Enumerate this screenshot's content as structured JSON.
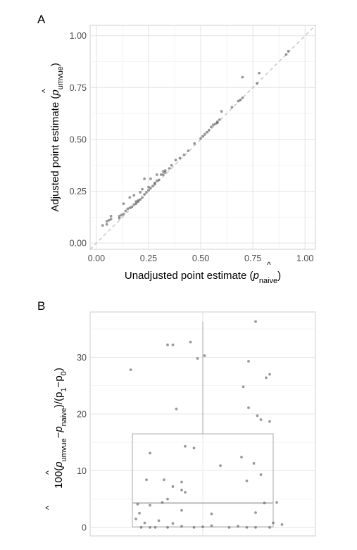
{
  "chart_data": [
    {
      "panel_label": "A",
      "type": "scatter",
      "xlabel": "Unadjusted point estimate (p̂naive)",
      "ylabel": "Adjusted point estimate (p̂umvue)",
      "xlabel_parts": {
        "pre": "Unadjusted point estimate (",
        "hat": "p",
        "sub": "naive",
        "post": ")"
      },
      "ylabel_parts": {
        "pre": "Adjusted point estimate (",
        "hat": "p",
        "sub": "umvue",
        "post": ")"
      },
      "xlim": [
        -0.03,
        1.05
      ],
      "ylim": [
        -0.03,
        1.05
      ],
      "x_ticks": [
        "0.00",
        "0.25",
        "0.50",
        "0.75",
        "1.00"
      ],
      "y_ticks": [
        "0.00",
        "0.25",
        "0.50",
        "0.75",
        "1.00"
      ],
      "x_tick_values": [
        0,
        0.25,
        0.5,
        0.75,
        1
      ],
      "y_tick_values": [
        0,
        0.25,
        0.5,
        0.75,
        1
      ],
      "reference_line": "identity (dashed)",
      "grid": true,
      "point_color": "#555555",
      "points": [
        [
          0.03,
          0.085
        ],
        [
          0.05,
          0.09
        ],
        [
          0.05,
          0.105
        ],
        [
          0.06,
          0.11
        ],
        [
          0.07,
          0.13
        ],
        [
          0.07,
          0.115
        ],
        [
          0.11,
          0.12
        ],
        [
          0.11,
          0.13
        ],
        [
          0.12,
          0.135
        ],
        [
          0.13,
          0.14
        ],
        [
          0.13,
          0.19
        ],
        [
          0.14,
          0.155
        ],
        [
          0.15,
          0.165
        ],
        [
          0.16,
          0.17
        ],
        [
          0.16,
          0.22
        ],
        [
          0.17,
          0.175
        ],
        [
          0.18,
          0.185
        ],
        [
          0.18,
          0.23
        ],
        [
          0.19,
          0.19
        ],
        [
          0.19,
          0.2
        ],
        [
          0.2,
          0.205
        ],
        [
          0.2,
          0.2
        ],
        [
          0.21,
          0.21
        ],
        [
          0.21,
          0.245
        ],
        [
          0.22,
          0.22
        ],
        [
          0.22,
          0.26
        ],
        [
          0.23,
          0.235
        ],
        [
          0.23,
          0.31
        ],
        [
          0.24,
          0.245
        ],
        [
          0.25,
          0.255
        ],
        [
          0.25,
          0.27
        ],
        [
          0.26,
          0.265
        ],
        [
          0.26,
          0.31
        ],
        [
          0.27,
          0.275
        ],
        [
          0.28,
          0.285
        ],
        [
          0.28,
          0.29
        ],
        [
          0.29,
          0.3
        ],
        [
          0.29,
          0.33
        ],
        [
          0.3,
          0.305
        ],
        [
          0.31,
          0.33
        ],
        [
          0.32,
          0.33
        ],
        [
          0.32,
          0.345
        ],
        [
          0.33,
          0.34
        ],
        [
          0.33,
          0.35
        ],
        [
          0.35,
          0.36
        ],
        [
          0.36,
          0.375
        ],
        [
          0.38,
          0.4
        ],
        [
          0.4,
          0.41
        ],
        [
          0.42,
          0.425
        ],
        [
          0.44,
          0.445
        ],
        [
          0.47,
          0.48
        ],
        [
          0.5,
          0.505
        ],
        [
          0.51,
          0.515
        ],
        [
          0.52,
          0.525
        ],
        [
          0.53,
          0.535
        ],
        [
          0.54,
          0.545
        ],
        [
          0.55,
          0.56
        ],
        [
          0.56,
          0.57
        ],
        [
          0.57,
          0.575
        ],
        [
          0.58,
          0.58
        ],
        [
          0.58,
          0.585
        ],
        [
          0.59,
          0.595
        ],
        [
          0.6,
          0.635
        ],
        [
          0.65,
          0.655
        ],
        [
          0.68,
          0.685
        ],
        [
          0.69,
          0.69
        ],
        [
          0.7,
          0.7
        ],
        [
          0.7,
          0.8
        ],
        [
          0.77,
          0.77
        ],
        [
          0.78,
          0.82
        ],
        [
          0.91,
          0.91
        ],
        [
          0.92,
          0.925
        ]
      ]
    },
    {
      "panel_label": "B",
      "type": "box",
      "ylabel": "100(p̂umvue − p̂naive)/(p1 − p0)",
      "ylabel_parts": {
        "pre": "100(",
        "h1": "p",
        "s1": "umvue",
        "mid": "−",
        "h2": "p",
        "s2": "naive",
        "post1": ")/(p",
        "s3": "1",
        "mid2": "−p",
        "s4": "0",
        "post2": ")"
      },
      "ylim": [
        -1.5,
        38
      ],
      "y_ticks": [
        "0",
        "10",
        "20",
        "30"
      ],
      "y_tick_values": [
        0,
        10,
        20,
        30
      ],
      "box": {
        "lower_whisker": 0,
        "q1": 0.1,
        "median": 4.3,
        "q3": 16.5,
        "upper_whisker": 36.3
      },
      "grid": true,
      "point_color": "#555555",
      "jitter_points": [
        [
          -0.35,
          0
        ],
        [
          -0.3,
          0
        ],
        [
          -0.27,
          0
        ],
        [
          -0.2,
          0
        ],
        [
          -0.12,
          0.2
        ],
        [
          -0.05,
          0
        ],
        [
          0,
          0.1
        ],
        [
          0.05,
          0.3
        ],
        [
          0.15,
          0
        ],
        [
          0.2,
          0.2
        ],
        [
          0.25,
          0
        ],
        [
          0.3,
          0
        ],
        [
          0.38,
          0
        ],
        [
          0.45,
          0.5
        ],
        [
          -0.33,
          0.8
        ],
        [
          -0.25,
          1.2
        ],
        [
          -0.17,
          0.7
        ],
        [
          -0.38,
          1.5
        ],
        [
          -0.36,
          2.5
        ],
        [
          -0.3,
          3.9
        ],
        [
          -0.37,
          4.1
        ],
        [
          -0.23,
          4.4
        ],
        [
          -0.12,
          3.0
        ],
        [
          -0.2,
          5.0
        ],
        [
          -0.1,
          6.2
        ],
        [
          -0.12,
          6.6
        ],
        [
          0.05,
          2.4
        ],
        [
          0.3,
          2.6
        ],
        [
          0.4,
          0.8
        ],
        [
          0.35,
          4.3
        ],
        [
          0.42,
          4.4
        ],
        [
          -0.17,
          7.2
        ],
        [
          0.25,
          8.2
        ],
        [
          -0.32,
          8.4
        ],
        [
          -0.22,
          8.4
        ],
        [
          -0.12,
          8.0
        ],
        [
          0.33,
          9.3
        ],
        [
          0.1,
          10.9
        ],
        [
          -0.3,
          13.1
        ],
        [
          -0.1,
          14.3
        ],
        [
          -0.05,
          14.0
        ],
        [
          0.22,
          12.4
        ],
        [
          0.29,
          11.3
        ],
        [
          0.31,
          19.7
        ],
        [
          0.26,
          21.1
        ],
        [
          0.33,
          19.0
        ],
        [
          0.38,
          18.7
        ],
        [
          -0.15,
          20.9
        ],
        [
          0.23,
          24.8
        ],
        [
          0.38,
          27.0
        ],
        [
          0.36,
          26.4
        ],
        [
          -0.41,
          27.8
        ],
        [
          0.26,
          29.3
        ],
        [
          -0.03,
          29.8
        ],
        [
          0.01,
          30.3
        ],
        [
          -0.2,
          32.2
        ],
        [
          -0.17,
          32.2
        ],
        [
          -0.07,
          32.7
        ],
        [
          0.3,
          36.3
        ]
      ]
    }
  ]
}
